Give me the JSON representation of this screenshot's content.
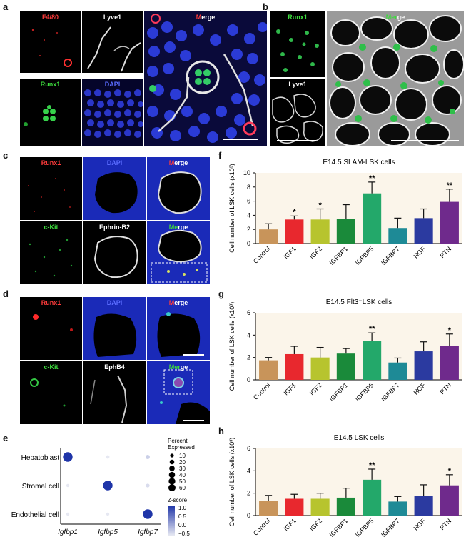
{
  "panels": {
    "a": {
      "letter": "a",
      "tiles": [
        {
          "label": "F4/80",
          "color": "#ff3b3b"
        },
        {
          "label": "Lyve1",
          "color": "#ffffff"
        },
        {
          "label_parts": [
            "M",
            "erge"
          ],
          "colors": [
            "#ff3b3b",
            "#ffffff"
          ]
        },
        {
          "label": "Runx1",
          "color": "#3ddc3d"
        },
        {
          "label": "DAPI",
          "color": "#5a6cff"
        }
      ]
    },
    "b": {
      "letter": "b",
      "tiles": [
        {
          "label": "Runx1",
          "color": "#3ddc3d"
        },
        {
          "label": "Lyve1",
          "color": "#ffffff"
        },
        {
          "label_parts": [
            "Mer",
            "ge"
          ],
          "colors": [
            "#3ddc3d",
            "#ffffff"
          ]
        }
      ]
    },
    "c": {
      "letter": "c",
      "tiles": [
        {
          "label": "Runx1",
          "color": "#ff3b3b"
        },
        {
          "label": "DAPI",
          "color": "#5a6cff"
        },
        {
          "label_parts": [
            "M",
            "erge"
          ],
          "colors": [
            "#ff3b3b",
            "#ffffff"
          ]
        },
        {
          "label": "c-Kit",
          "color": "#3ddc3d"
        },
        {
          "label": "Ephrin-B2",
          "color": "#ffffff"
        },
        {
          "label_parts": [
            "Me",
            "rge"
          ],
          "colors": [
            "#3ddc3d",
            "#ffffff"
          ]
        }
      ]
    },
    "d": {
      "letter": "d",
      "tiles": [
        {
          "label": "Runx1",
          "color": "#ff3b3b"
        },
        {
          "label": "DAPI",
          "color": "#5a6cff"
        },
        {
          "label_parts": [
            "M",
            "erge"
          ],
          "colors": [
            "#ff3b3b",
            "#ffffff"
          ]
        },
        {
          "label": "c-Kit",
          "color": "#3ddc3d"
        },
        {
          "label": "EphB4",
          "color": "#ffffff"
        },
        {
          "label_parts": [
            "Mer",
            "ge"
          ],
          "colors": [
            "#3ddc3d",
            "#ffffff"
          ]
        }
      ]
    },
    "e": {
      "letter": "e"
    },
    "f": {
      "letter": "f"
    },
    "g": {
      "letter": "g"
    },
    "h": {
      "letter": "h"
    }
  },
  "chart_data": [
    {
      "id": "f",
      "type": "bar",
      "title": "E14.5 SLAM-LSK cells",
      "ylabel": "Cell number of LSK cells (x10³)",
      "ylim": [
        0,
        10
      ],
      "yticks": [
        "0",
        "2",
        "4",
        "6",
        "8",
        "10"
      ],
      "categories": [
        "Control",
        "IGF1",
        "IGF2",
        "IGFBP1",
        "IGFBP5",
        "IGFBP7",
        "HGF",
        "PTN"
      ],
      "values": [
        2.0,
        3.4,
        3.4,
        3.5,
        7.1,
        2.2,
        3.6,
        5.9
      ],
      "errors": [
        0.8,
        0.5,
        1.5,
        2.0,
        1.6,
        1.4,
        1.3,
        1.8
      ],
      "significance": [
        "",
        "*",
        "*",
        "",
        "**",
        "",
        "",
        "**"
      ],
      "colors": [
        "#c8945a",
        "#e8282e",
        "#b7c42e",
        "#1a8a3a",
        "#23a86a",
        "#1e8a96",
        "#2b3aa0",
        "#6f2a8c"
      ]
    },
    {
      "id": "g",
      "type": "bar",
      "title": "E14.5 Flt3⁻LSK cells",
      "ylabel": "Cell number of LSK cells (x10³)",
      "ylim": [
        0,
        6
      ],
      "yticks": [
        "0",
        "2",
        "4",
        "6"
      ],
      "categories": [
        "Control",
        "IGF1",
        "IGF2",
        "IGFBP1",
        "IGFBP5",
        "IGFBP7",
        "HGF",
        "PTN"
      ],
      "values": [
        1.75,
        2.3,
        2.0,
        2.35,
        3.45,
        1.55,
        2.55,
        3.05
      ],
      "errors": [
        0.25,
        0.7,
        0.9,
        0.45,
        0.75,
        0.4,
        0.85,
        1.05
      ],
      "significance": [
        "",
        "",
        "",
        "",
        "**",
        "",
        "",
        "*"
      ],
      "colors": [
        "#c8945a",
        "#e8282e",
        "#b7c42e",
        "#1a8a3a",
        "#23a86a",
        "#1e8a96",
        "#2b3aa0",
        "#6f2a8c"
      ]
    },
    {
      "id": "h",
      "type": "bar",
      "title": "E14.5 LSK cells",
      "ylabel": "Cell number of LSK cells (x10³)",
      "ylim": [
        0,
        6
      ],
      "yticks": [
        "0",
        "2",
        "4",
        "6"
      ],
      "categories": [
        "Control",
        "IGF1",
        "IGF2",
        "IGFBP1",
        "IGFBP5",
        "IGFBP7",
        "HGF",
        "PTN"
      ],
      "values": [
        1.3,
        1.5,
        1.5,
        1.6,
        3.2,
        1.25,
        1.75,
        2.7
      ],
      "errors": [
        0.5,
        0.4,
        0.5,
        0.85,
        0.95,
        0.45,
        1.0,
        0.95
      ],
      "significance": [
        "",
        "",
        "",
        "",
        "**",
        "",
        "",
        "*"
      ],
      "colors": [
        "#c8945a",
        "#e8282e",
        "#b7c42e",
        "#1a8a3a",
        "#23a86a",
        "#1e8a96",
        "#2b3aa0",
        "#6f2a8c"
      ]
    },
    {
      "id": "e",
      "type": "scatter",
      "rows": [
        "Hepatoblast",
        "Stromal cell",
        "Endothelial cell"
      ],
      "columns": [
        "Igfbp1",
        "Igfbp5",
        "Igfbp7"
      ],
      "points": [
        {
          "row": "Hepatoblast",
          "col": "Igfbp1",
          "pct": 60,
          "z": 1.0
        },
        {
          "row": "Hepatoblast",
          "col": "Igfbp5",
          "pct": 3,
          "z": -0.5
        },
        {
          "row": "Hepatoblast",
          "col": "Igfbp7",
          "pct": 6,
          "z": -0.3
        },
        {
          "row": "Stromal cell",
          "col": "Igfbp1",
          "pct": 2,
          "z": -0.5
        },
        {
          "row": "Stromal cell",
          "col": "Igfbp5",
          "pct": 60,
          "z": 1.0
        },
        {
          "row": "Stromal cell",
          "col": "Igfbp7",
          "pct": 4,
          "z": -0.4
        },
        {
          "row": "Endothelial cell",
          "col": "Igfbp1",
          "pct": 2,
          "z": -0.5
        },
        {
          "row": "Endothelial cell",
          "col": "Igfbp5",
          "pct": 2,
          "z": -0.5
        },
        {
          "row": "Endothelial cell",
          "col": "Igfbp7",
          "pct": 60,
          "z": 1.0
        }
      ],
      "legend_size_title_1": "Percent",
      "legend_size_title_2": "Expressed",
      "size_levels": [
        "10",
        "20",
        "30",
        "40",
        "50",
        "60"
      ],
      "legend_color_title": "Z-score",
      "color_levels": [
        "1.0",
        "0.5",
        "0.0",
        "−0.5"
      ],
      "color_high": "#1f35a8",
      "color_low": "#e6e8f2"
    }
  ]
}
